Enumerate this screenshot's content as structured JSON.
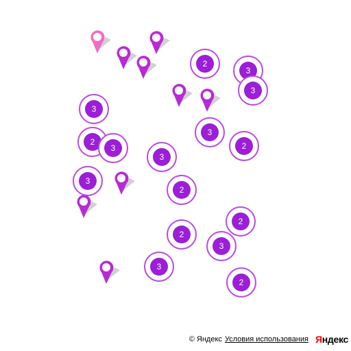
{
  "map": {
    "clusters": [
      {
        "count": "2"
      },
      {
        "count": "3"
      },
      {
        "count": "3"
      },
      {
        "count": "3"
      },
      {
        "count": "2"
      },
      {
        "count": "3"
      },
      {
        "count": "3"
      },
      {
        "count": "2"
      },
      {
        "count": "3"
      },
      {
        "count": "3"
      },
      {
        "count": "2"
      },
      {
        "count": "2"
      },
      {
        "count": "2"
      },
      {
        "count": "3"
      },
      {
        "count": "3"
      },
      {
        "count": "2"
      }
    ],
    "placemarks": [
      {
        "color": "#f06cc3"
      },
      {
        "color": "#b82ad6"
      },
      {
        "color": "#b82ad6"
      },
      {
        "color": "#b82ad6"
      },
      {
        "color": "#b82ad6"
      },
      {
        "color": "#b82ad6"
      },
      {
        "color": "#b82ad6"
      },
      {
        "color": "#b82ad6"
      },
      {
        "color": "#b82ad6"
      }
    ],
    "cluster_border_color": "#b64ae2",
    "cluster_fill_color": "#9b1fd6"
  },
  "footer": {
    "copyright": "© Яндекс",
    "terms": "Условия использования",
    "logo_first": "Я",
    "logo_rest": "ндекс"
  }
}
